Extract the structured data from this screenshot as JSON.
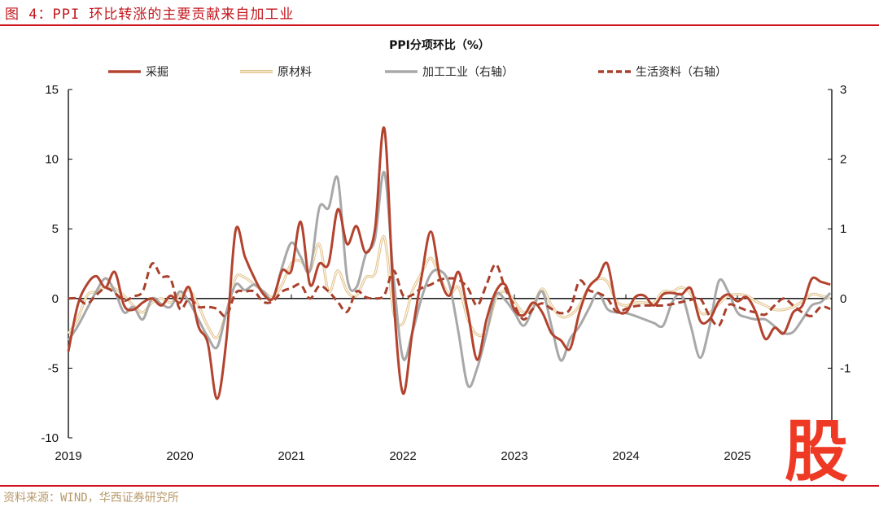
{
  "figure_title": "图 4：PPI 环比转涨的主要贡献来自加工业",
  "source": "资料来源：WIND，华西证券研究所",
  "logo_text": "股",
  "chart_data": {
    "type": "line",
    "title": "PPI分项环比（%）",
    "xlabel": "",
    "ylabel": "",
    "x_start": "2019-01",
    "x_end": "2025-11",
    "frequency": "monthly",
    "x_tick_labels": [
      "2019",
      "2020",
      "2021",
      "2022",
      "2023",
      "2024",
      "2025"
    ],
    "ylim_left": [
      -10,
      15
    ],
    "yticks_left": [
      "15",
      "10",
      "5",
      "0",
      "-5",
      "-10"
    ],
    "ylim_right": [
      -2,
      3
    ],
    "yticks_right": [
      "3",
      "2",
      "1",
      "0",
      "-1"
    ],
    "grid": false,
    "legend_position": "top",
    "series": [
      {
        "name": "采掘",
        "axis": "left",
        "style": "solid",
        "color": "#b3432e",
        "values": [
          -3.8,
          -0.5,
          1.0,
          1.6,
          0.8,
          1.9,
          -0.5,
          -0.8,
          -0.3,
          0,
          -0.5,
          0.2,
          -0.3,
          0.8,
          -2.0,
          -3.2,
          -7.2,
          -3.0,
          4.9,
          3.0,
          1.5,
          0.3,
          0,
          2.0,
          2.0,
          5.5,
          1.0,
          2.5,
          2.5,
          6.4,
          3.9,
          5.2,
          3.3,
          5.0,
          12.2,
          0,
          -6.8,
          -2.5,
          1.5,
          4.8,
          1.5,
          0.2,
          1.9,
          -1.0,
          -4.4,
          -1.5,
          0.5,
          1.0,
          -0.8,
          -1.2,
          -0.3,
          -1.0,
          -2.5,
          -3.0,
          -3.6,
          -1.0,
          0.8,
          1.5,
          2.5,
          -0.6,
          -1.0,
          0.1,
          0.2,
          -0.5,
          0.3,
          0.4,
          0.3,
          0.7,
          -1.6,
          -1.5,
          -0.2,
          0.3,
          -0.2,
          0.1,
          -1.0,
          -2.9,
          -2.1,
          -2.5,
          -1.0,
          -0.5,
          1.4,
          1.2,
          1.0
        ]
      },
      {
        "name": "原材料",
        "axis": "left",
        "style": "double",
        "color": "#e2c58f",
        "values": [
          -2.5,
          -1.5,
          0.2,
          0.5,
          0.8,
          0.7,
          0.2,
          -0.5,
          -1.0,
          -0.3,
          0,
          -0.3,
          0.2,
          0.6,
          -0.5,
          -2.0,
          -2.8,
          -1.0,
          1.5,
          1.5,
          1.0,
          0.5,
          0.1,
          1.0,
          2.5,
          2.7,
          2.0,
          3.9,
          0.5,
          2.0,
          0.5,
          0.2,
          1.5,
          1.8,
          4.4,
          -1.0,
          -1.8,
          0.5,
          1.8,
          2.9,
          1.5,
          0.3,
          0.8,
          -1.5,
          -2.6,
          -2.3,
          0,
          0.5,
          -0.2,
          -1.0,
          -0.5,
          0.7,
          -0.5,
          -1.3,
          -1.2,
          -0.5,
          0.8,
          1.4,
          1.2,
          -0.2,
          -0.5,
          -0.3,
          -0.3,
          -0.3,
          0.5,
          0.5,
          0.8,
          0.3,
          -1.0,
          -1.0,
          -0.4,
          0.2,
          0.3,
          0.2,
          -0.2,
          -0.5,
          -0.8,
          -0.8,
          -0.6,
          -0.2,
          0.3,
          0.2,
          0
        ]
      },
      {
        "name": "加工工业（右轴）",
        "axis": "right",
        "style": "solid",
        "color": "#a8a8a8",
        "values": [
          -0.6,
          -0.4,
          -0.15,
          0.1,
          0.29,
          0.1,
          -0.2,
          -0.12,
          -0.3,
          0,
          -0.08,
          -0.12,
          0.1,
          -0.05,
          -0.3,
          -0.55,
          -0.7,
          -0.2,
          0.2,
          0.12,
          0.2,
          0.1,
          0,
          0.45,
          0.8,
          0.6,
          0.4,
          1.3,
          1.3,
          1.72,
          0.3,
          0.16,
          0.63,
          0.86,
          1.81,
          0.3,
          -0.85,
          -0.5,
          0,
          0.35,
          0.4,
          0.2,
          -0.5,
          -1.25,
          -1.0,
          -0.5,
          0.05,
          -0.02,
          -0.2,
          -0.39,
          -0.15,
          0.1,
          -0.4,
          -0.89,
          -0.58,
          -0.4,
          -0.15,
          0.08,
          -0.15,
          -0.2,
          -0.21,
          -0.25,
          -0.3,
          -0.35,
          -0.39,
          -0.05,
          0.05,
          -0.4,
          -0.85,
          -0.4,
          0.25,
          0.1,
          -0.2,
          -0.27,
          -0.3,
          -0.3,
          -0.4,
          -0.5,
          -0.48,
          -0.3,
          -0.1,
          -0.05,
          0.08
        ]
      },
      {
        "name": "生活资料（右轴）",
        "axis": "right",
        "style": "dashed",
        "color": "#a8402c",
        "values": [
          0,
          0,
          -0.08,
          0.05,
          0.15,
          0.08,
          -0.03,
          0.03,
          0.1,
          0.5,
          0.32,
          0.28,
          -0.15,
          0,
          -0.12,
          -0.12,
          -0.15,
          -0.25,
          0.08,
          0.1,
          0.1,
          -0.05,
          -0.04,
          0.1,
          0.15,
          0.2,
          0,
          0.18,
          0.1,
          -0.05,
          -0.19,
          0.1,
          0.02,
          0,
          0.05,
          0.4,
          0.05,
          0.05,
          0.15,
          0.2,
          0.27,
          0.29,
          0.27,
          0.15,
          -0.1,
          0.2,
          0.49,
          0.15,
          -0.1,
          -0.3,
          -0.15,
          -0.07,
          -0.15,
          -0.21,
          -0.15,
          0.25,
          0.12,
          0.08,
          0,
          -0.19,
          -0.15,
          -0.11,
          -0.1,
          -0.1,
          -0.1,
          -0.08,
          -0.05,
          -0.02,
          0,
          -0.25,
          -0.39,
          -0.1,
          -0.12,
          -0.17,
          -0.2,
          -0.23,
          -0.1,
          0,
          -0.1,
          -0.2,
          -0.25,
          -0.12,
          -0.15
        ]
      }
    ]
  }
}
